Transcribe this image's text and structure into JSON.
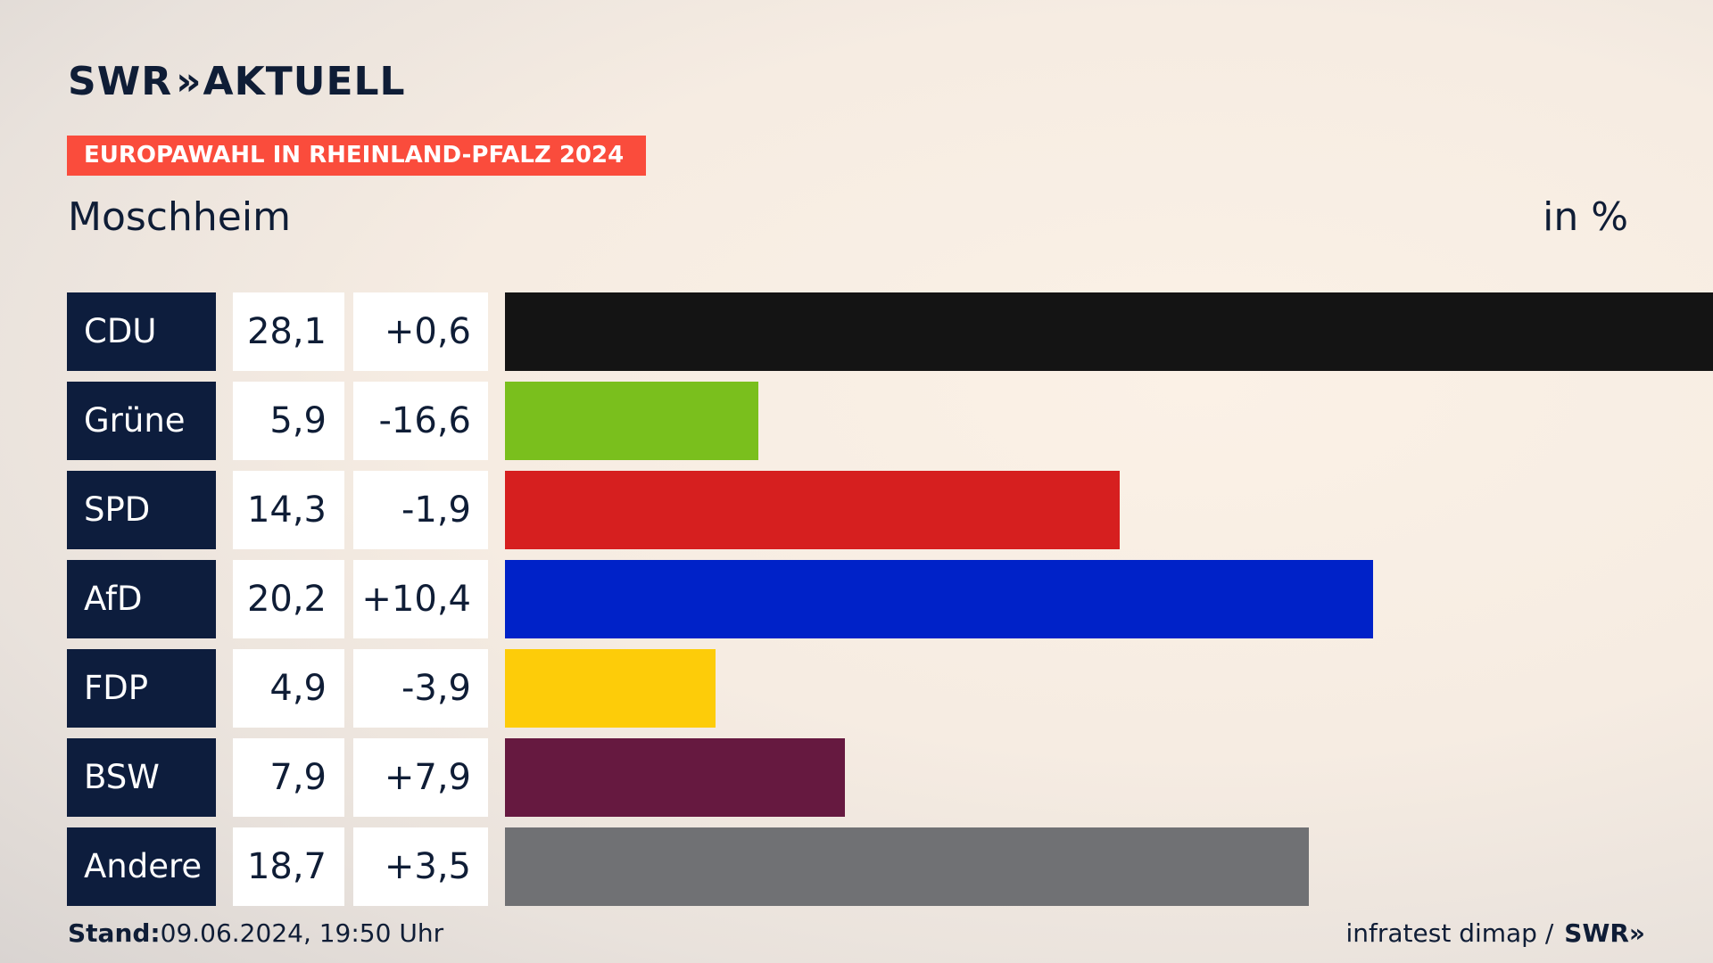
{
  "header": {
    "brand": "SWR",
    "brand_chevrons": "»",
    "brand_suffix": "AKTUELL",
    "kicker": "EUROPAWAHL IN RHEINLAND-PFALZ 2024",
    "place": "Moschheim",
    "unit": "in %"
  },
  "footer": {
    "stand_label": "Stand:",
    "stand_value": "09.06.2024, 19:50 Uhr",
    "source": "infratest dimap /",
    "source_brand": "SWR»"
  },
  "chart_data": {
    "type": "bar",
    "orientation": "horizontal",
    "title": "Moschheim",
    "unit": "in %",
    "xlim": [
      0,
      28.1
    ],
    "categories": [
      "CDU",
      "Grüne",
      "SPD",
      "AfD",
      "FDP",
      "BSW",
      "Andere"
    ],
    "values": [
      28.1,
      5.9,
      14.3,
      20.2,
      4.9,
      7.9,
      18.7
    ],
    "value_labels": [
      "28,1",
      "5,9",
      "14,3",
      "20,2",
      "4,9",
      "7,9",
      "18,7"
    ],
    "diff_labels": [
      "+0,6",
      "-16,6",
      "-1,9",
      "+10,4",
      "-3,9",
      "+7,9",
      "+3,5"
    ],
    "colors": [
      "#141414",
      "#7abf1d",
      "#d61f1f",
      "#0022c8",
      "#fdcc09",
      "#661940",
      "#707174"
    ]
  }
}
